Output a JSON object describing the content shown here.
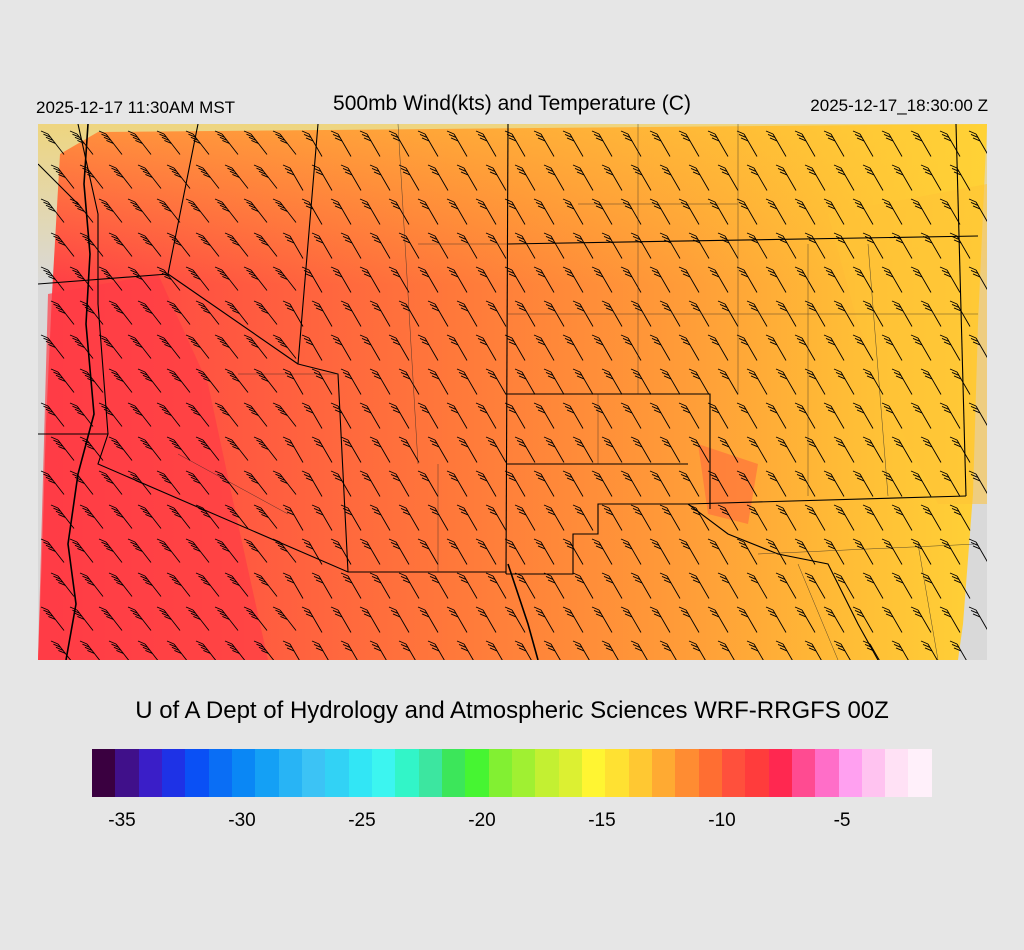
{
  "header": {
    "local_time": "2025-12-17 11:30AM MST",
    "title": "500mb Wind(kts) and Temperature (C)",
    "valid_time": "2025-12-17_18:30:00 Z"
  },
  "credit": "U of A Dept of Hydrology and Atmospheric Sciences WRF-RRGFS 00Z",
  "colorbar": {
    "colors": [
      "#3a0040",
      "#40108a",
      "#3a1ec8",
      "#1e32e6",
      "#0a50f5",
      "#0a6ef5",
      "#0a87f5",
      "#14a0f5",
      "#28b4f5",
      "#3cc3f5",
      "#32d2f5",
      "#32e6f5",
      "#3cf5f0",
      "#32f5c8",
      "#3ce6a0",
      "#3ce65a",
      "#46f532",
      "#82f032",
      "#a0f032",
      "#c3f032",
      "#dcf032",
      "#fff532",
      "#ffe132",
      "#ffc832",
      "#ffaa32",
      "#ff8c32",
      "#ff6e32",
      "#ff503c",
      "#ff3c3c",
      "#ff2850",
      "#ff4b91",
      "#ff6ec8",
      "#ffa0f0",
      "#ffc3f0",
      "#ffe1f5",
      "#fff0fa"
    ],
    "ticks": [
      {
        "label": "-35",
        "pos": 0.0357
      },
      {
        "label": "-30",
        "pos": 0.1786
      },
      {
        "label": "-25",
        "pos": 0.3214
      },
      {
        "label": "-20",
        "pos": 0.4643
      },
      {
        "label": "-15",
        "pos": 0.6071
      },
      {
        "label": "-10",
        "pos": 0.75
      },
      {
        "label": "-5",
        "pos": 0.8929
      }
    ]
  }
}
